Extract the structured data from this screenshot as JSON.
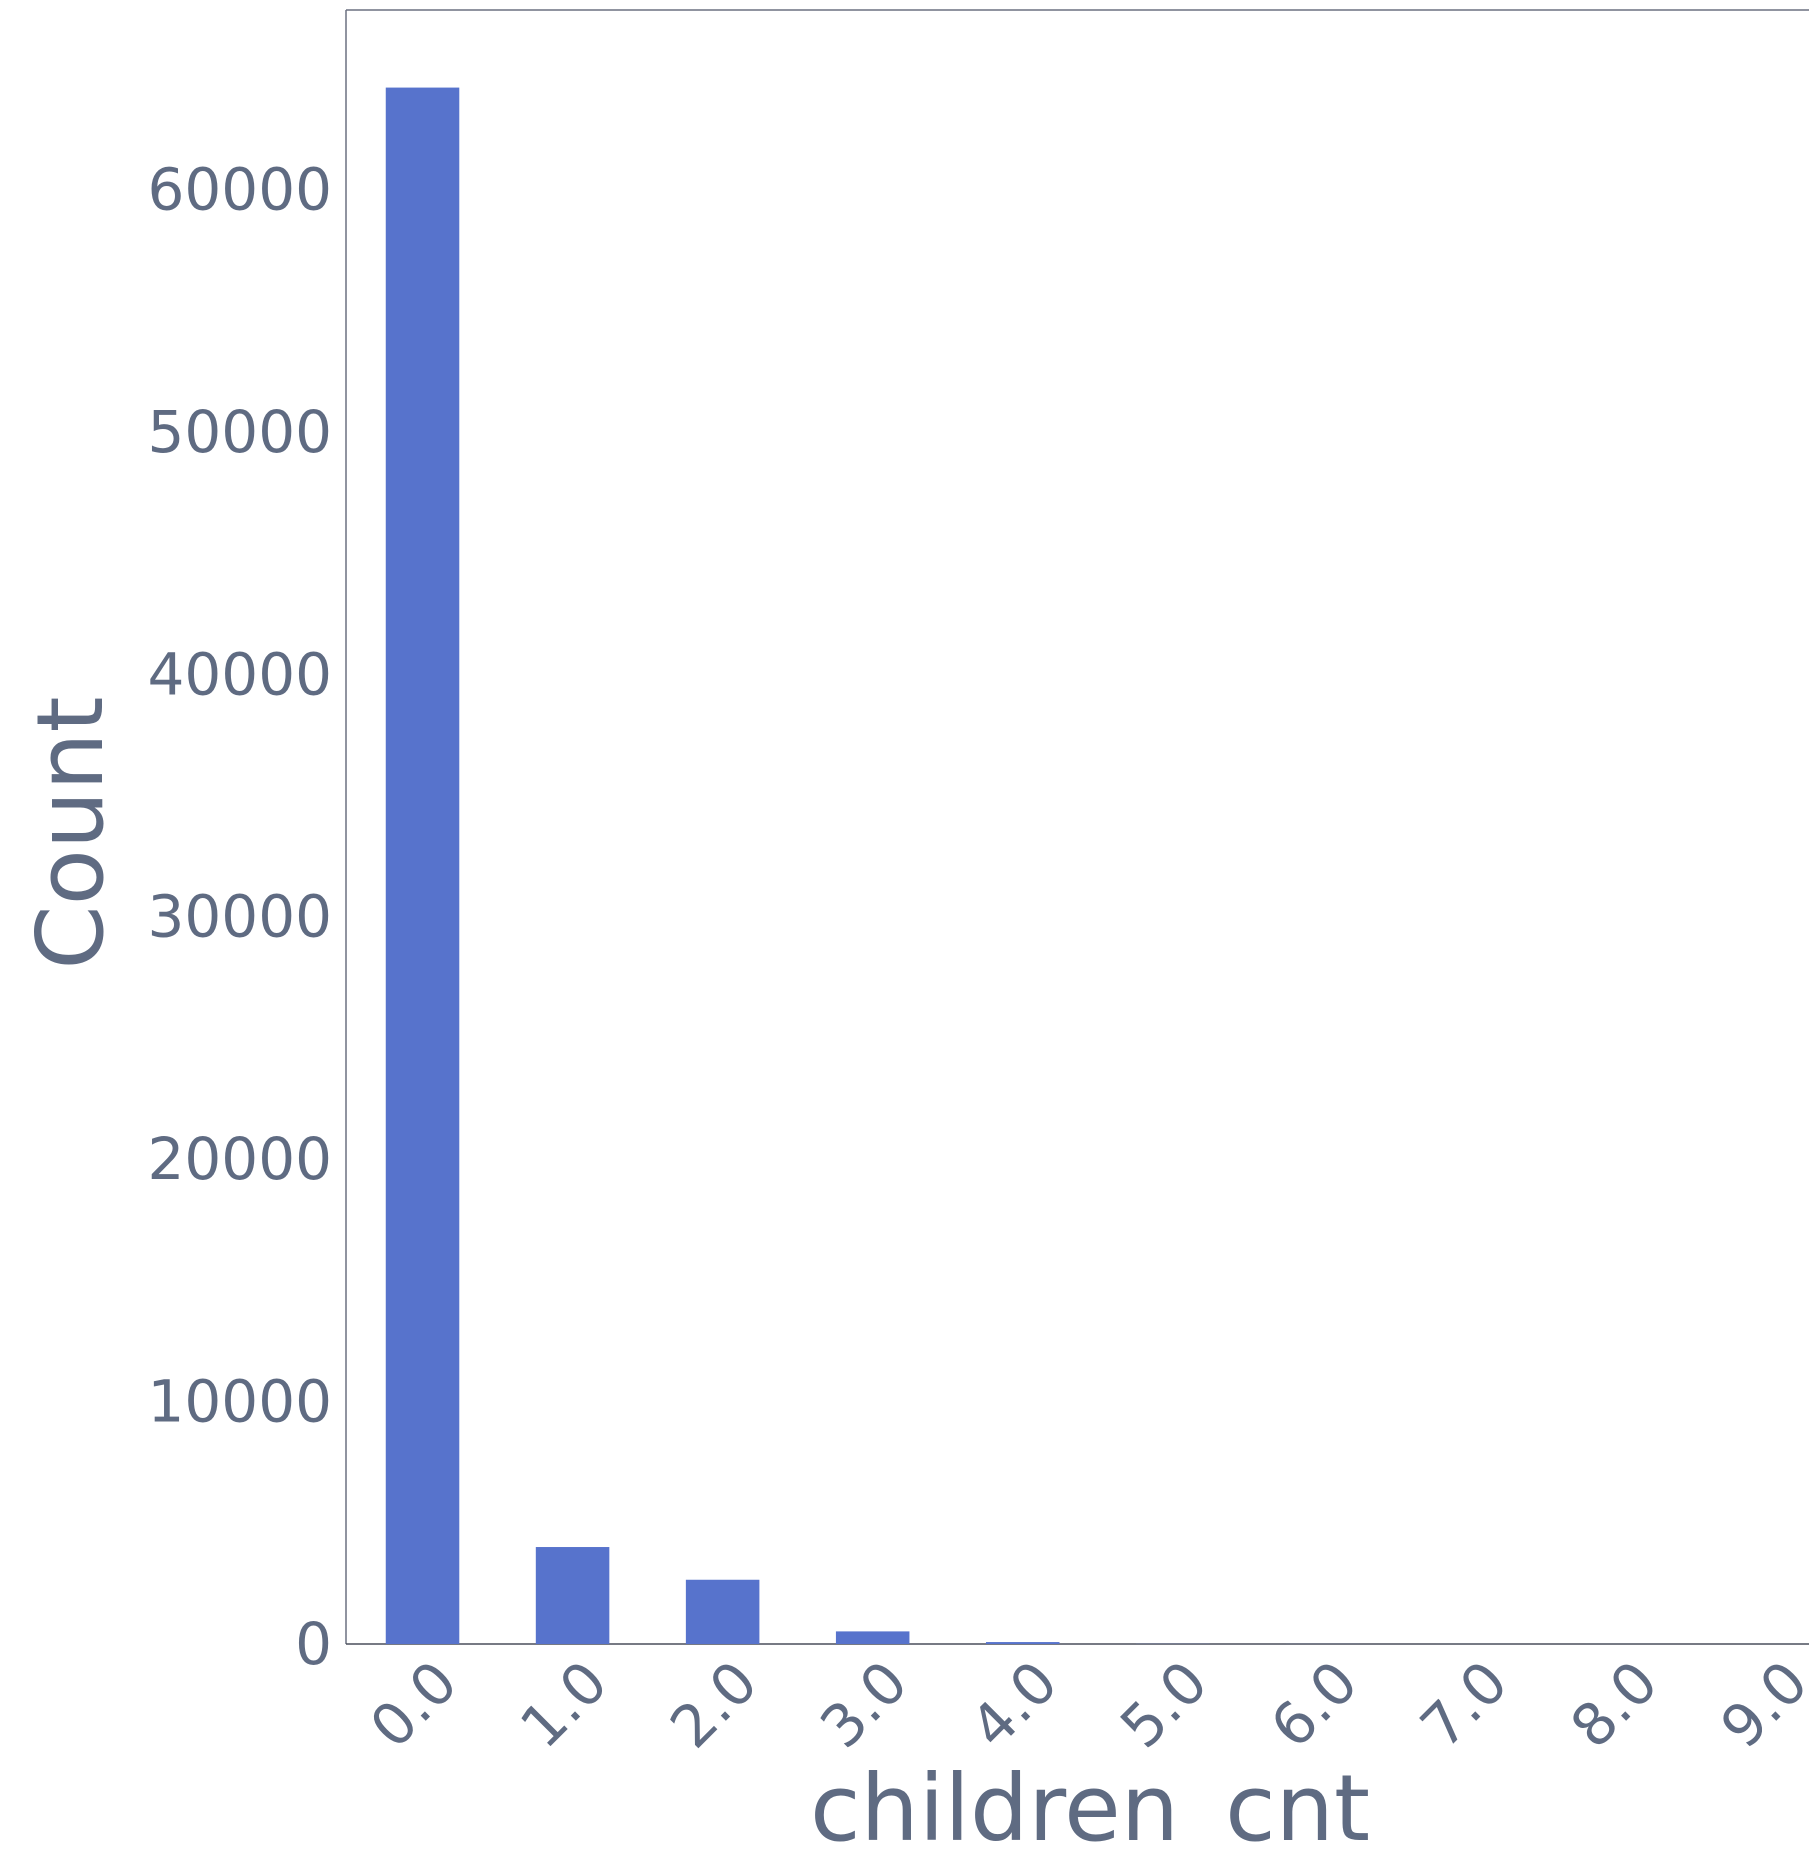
{
  "chart_data": {
    "type": "bar",
    "categories": [
      "0.0",
      "1.0",
      "2.0",
      "3.0",
      "4.0",
      "5.0",
      "6.0",
      "7.0",
      "8.0",
      "9.0"
    ],
    "values": [
      64200,
      4000,
      2650,
      520,
      80,
      5,
      2,
      1,
      1,
      1
    ],
    "xlabel": "children_cnt",
    "ylabel": "Count",
    "ylim": [
      0,
      67400
    ],
    "yticks": [
      0,
      10000,
      20000,
      30000,
      40000,
      50000,
      60000
    ],
    "bar_color": "#5773cc",
    "grid": false
  }
}
